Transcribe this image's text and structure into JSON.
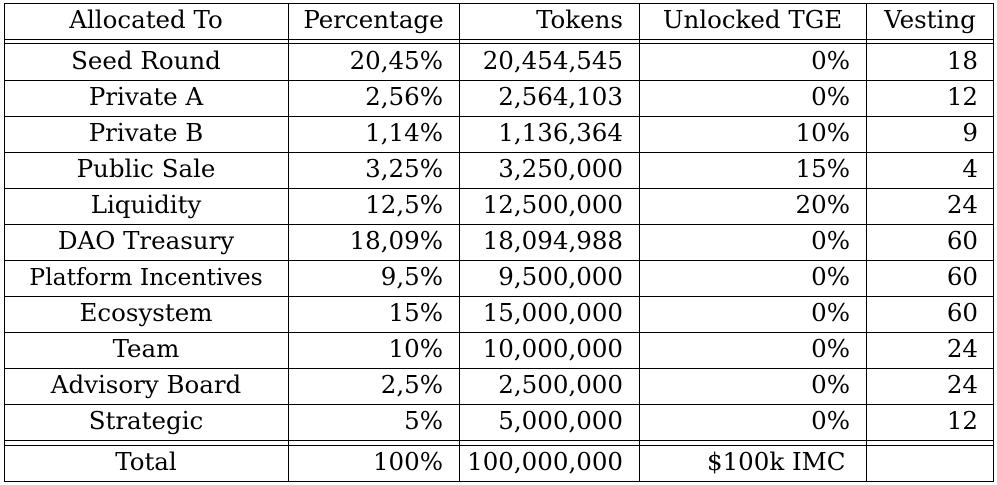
{
  "table": {
    "headers": [
      "Allocated To",
      "Percentage",
      "Tokens",
      "Unlocked TGE",
      "Vesting"
    ],
    "rows": [
      [
        "Seed Round",
        "20,45%",
        "20,454,545",
        "0%",
        "18"
      ],
      [
        "Private A",
        "2,56%",
        "2,564,103",
        "0%",
        "12"
      ],
      [
        "Private B",
        "1,14%",
        "1,136,364",
        "10%",
        "9"
      ],
      [
        "Public Sale",
        "3,25%",
        "3,250,000",
        "15%",
        "4"
      ],
      [
        "Liquidity",
        "12,5%",
        "12,500,000",
        "20%",
        "24"
      ],
      [
        "DAO Treasury",
        "18,09%",
        "18,094,988",
        "0%",
        "60"
      ],
      [
        "Platform Incentives",
        "9,5%",
        "9,500,000",
        "0%",
        "60"
      ],
      [
        "Ecosystem",
        "15%",
        "15,000,000",
        "0%",
        "60"
      ],
      [
        "Team",
        "10%",
        "10,000,000",
        "0%",
        "24"
      ],
      [
        "Advisory Board",
        "2,5%",
        "2,500,000",
        "0%",
        "24"
      ],
      [
        "Strategic",
        "5%",
        "5,000,000",
        "0%",
        "12"
      ]
    ],
    "total": [
      "Total",
      "100%",
      "100,000,000",
      "$100k IMC",
      ""
    ]
  }
}
